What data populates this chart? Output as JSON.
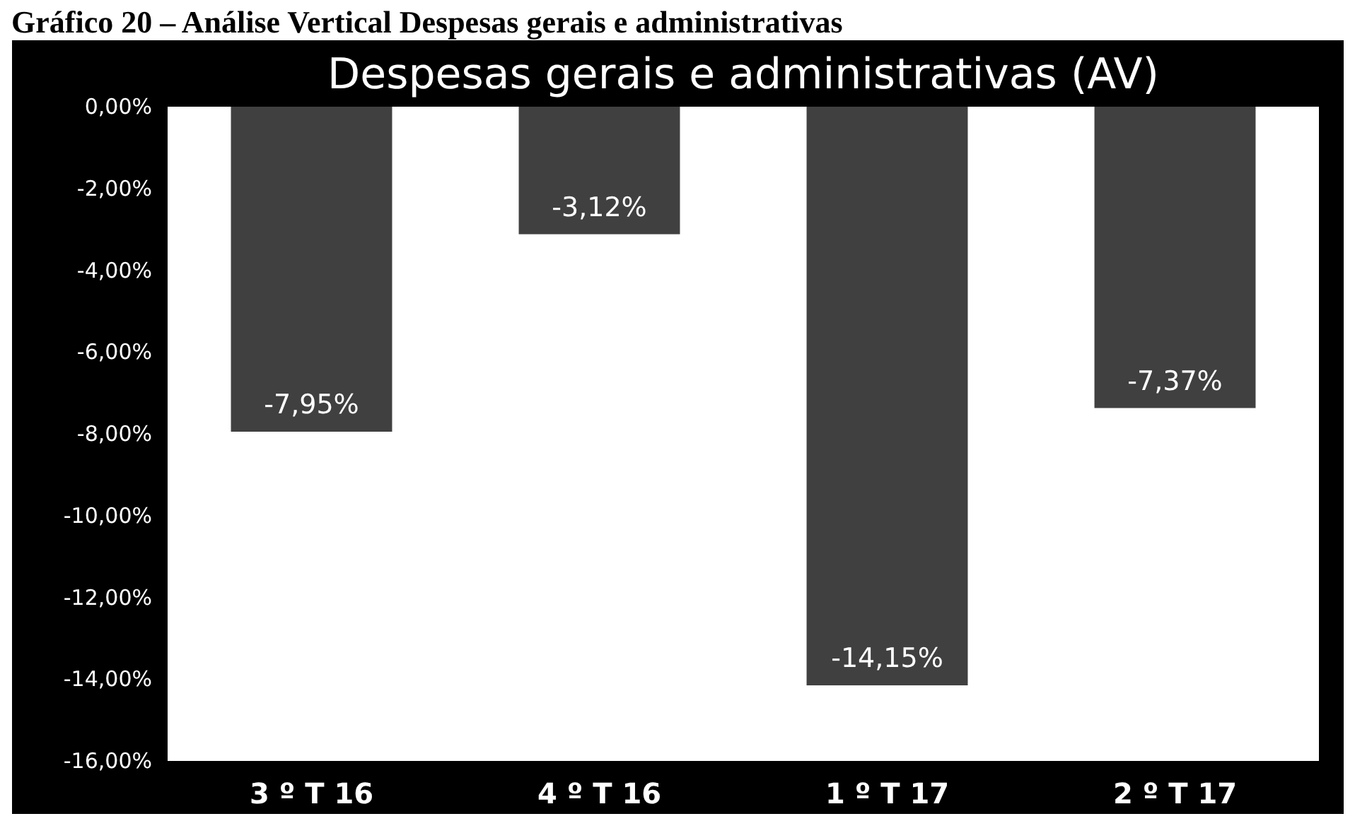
{
  "chart_data": {
    "type": "bar",
    "title": "Despesas gerais e administrativas (AV)",
    "annotations": [
      "Gráfico 20 – Análise Vertical Despesas gerais e administrativas"
    ],
    "categories": [
      "3 º T 16",
      "4 º T 16",
      "1 º T 17",
      "2 º T 17"
    ],
    "values": [
      -7.95,
      -3.12,
      -14.15,
      -7.37
    ],
    "value_labels": [
      "-7,95%",
      "-3,12%",
      "-14,15%",
      "-7,37%"
    ],
    "color": "#404040",
    "ylim": [
      -16,
      0
    ],
    "yticks": [
      {
        "value": 0,
        "label": "0,00%"
      },
      {
        "value": -2,
        "label": "-2,00%"
      },
      {
        "value": -4,
        "label": "-4,00%"
      },
      {
        "value": -6,
        "label": "-6,00%"
      },
      {
        "value": -8,
        "label": "-8,00%"
      },
      {
        "value": -10,
        "label": "-10,00%"
      },
      {
        "value": -12,
        "label": "-12,00%"
      },
      {
        "value": -14,
        "label": "-14,00%"
      },
      {
        "value": -16,
        "label": "-16,00%"
      }
    ],
    "grid": false
  }
}
